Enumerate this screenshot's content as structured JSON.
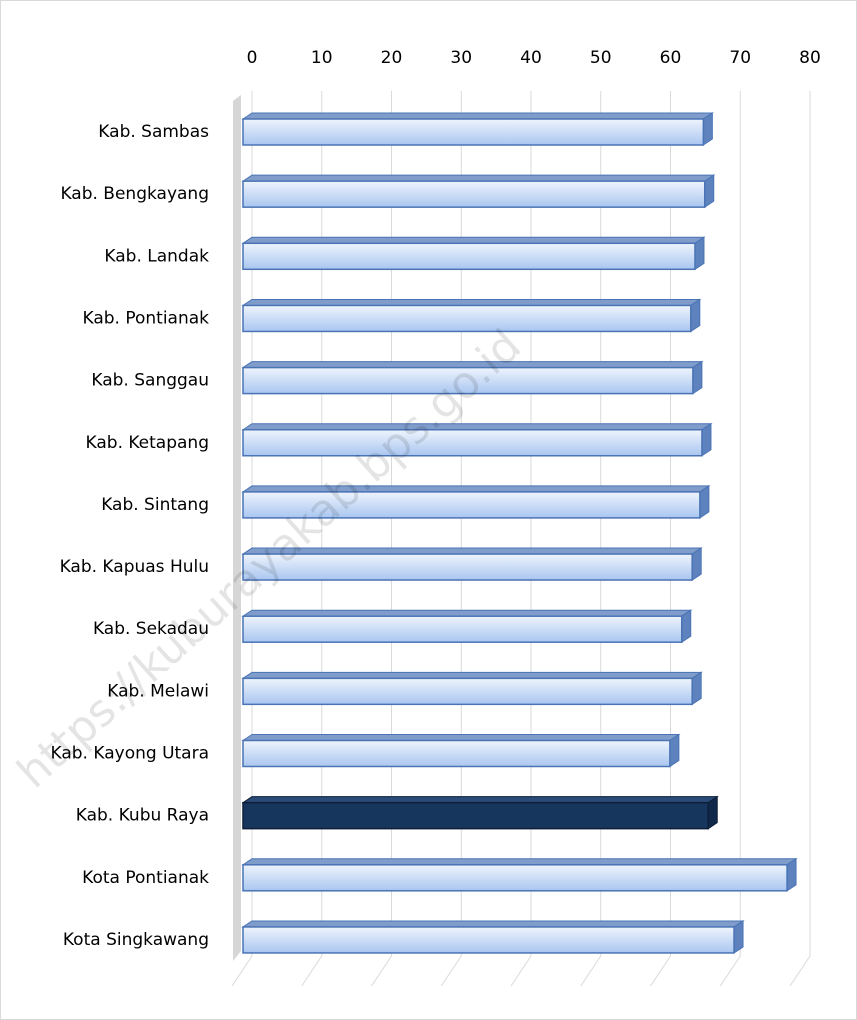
{
  "chart_data": {
    "type": "bar3d_horizontal",
    "categories": [
      "Kab. Sambas",
      "Kab. Bengkayang",
      "Kab. Landak",
      "Kab. Pontianak",
      "Kab. Sanggau",
      "Kab. Ketapang",
      "Kab. Sintang",
      "Kab. Kapuas Hulu",
      "Kab. Sekadau",
      "Kab. Melawi",
      "Kab. Kayong Utara",
      "Kab. Kubu Raya",
      "Kota Pontianak",
      "Kota Singkawang"
    ],
    "values": [
      66,
      66.2,
      64.8,
      64.2,
      64.5,
      65.8,
      65.5,
      64.4,
      62.9,
      64.4,
      61.2,
      66.7,
      78,
      70.4
    ],
    "colors": [
      "#c6daf7",
      "#c6daf7",
      "#c6daf7",
      "#c6daf7",
      "#c6daf7",
      "#c6daf7",
      "#c6daf7",
      "#c6daf7",
      "#c6daf7",
      "#c6daf7",
      "#c6daf7",
      "#17365d",
      "#c6daf7",
      "#c6daf7"
    ],
    "xlim": [
      0,
      80
    ],
    "xticks": [
      0,
      10,
      20,
      30,
      40,
      50,
      60,
      70,
      80
    ],
    "grid": true,
    "watermark": "https://kuburayakab.bps.go.id"
  }
}
